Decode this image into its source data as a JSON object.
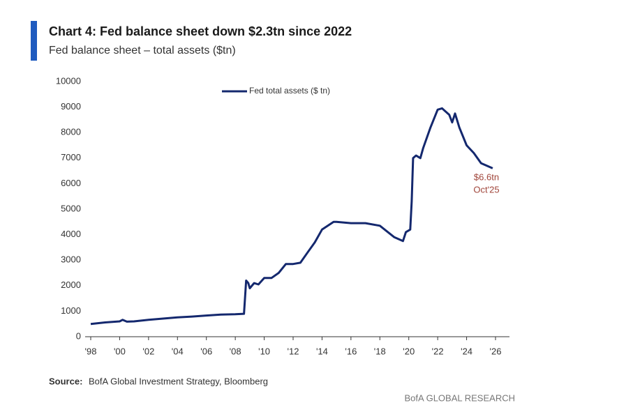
{
  "chart_data": {
    "type": "line",
    "title": "Chart 4: Fed balance sheet down $2.3tn since 2022",
    "subtitle": "Fed balance sheet – total assets ($tn)",
    "source_label": "Source:",
    "source": "BofA Global Investment Strategy, Bloomberg",
    "footer": "BofA GLOBAL RESEARCH",
    "annotation": [
      "$6.6tn",
      "Oct'25"
    ],
    "legend": "upper center",
    "grid": false,
    "xlim": [
      1998,
      2026
    ],
    "xticks": [
      {
        "value": 1998,
        "label": "'98"
      },
      {
        "value": 2000,
        "label": "'00"
      },
      {
        "value": 2002,
        "label": "'02"
      },
      {
        "value": 2004,
        "label": "'04"
      },
      {
        "value": 2006,
        "label": "'06"
      },
      {
        "value": 2008,
        "label": "'08"
      },
      {
        "value": 2010,
        "label": "'10"
      },
      {
        "value": 2012,
        "label": "'12"
      },
      {
        "value": 2014,
        "label": "'14"
      },
      {
        "value": 2016,
        "label": "'16"
      },
      {
        "value": 2018,
        "label": "'18"
      },
      {
        "value": 2020,
        "label": "'20"
      },
      {
        "value": 2022,
        "label": "'22"
      },
      {
        "value": 2024,
        "label": "'24"
      },
      {
        "value": 2026,
        "label": "'26"
      }
    ],
    "ylim": [
      0,
      10000
    ],
    "yticks": [
      0,
      1000,
      2000,
      3000,
      4000,
      5000,
      6000,
      7000,
      8000,
      9000,
      10000
    ],
    "x": [
      1998,
      1999,
      2000,
      2000.2,
      2000.5,
      2001,
      2002,
      2003,
      2004,
      2005,
      2006,
      2007,
      2008,
      2008.6,
      2008.75,
      2008.9,
      2009,
      2009.3,
      2009.6,
      2010,
      2010.5,
      2011,
      2011.5,
      2012,
      2012.5,
      2013,
      2013.5,
      2014,
      2014.8,
      2015,
      2016,
      2017,
      2018,
      2019,
      2019.6,
      2019.8,
      2020.1,
      2020.2,
      2020.3,
      2020.5,
      2020.8,
      2021,
      2021.5,
      2022,
      2022.3,
      2022.8,
      2023,
      2023.2,
      2023.5,
      2024,
      2024.5,
      2025,
      2025.8
    ],
    "series": [
      {
        "name": "Fed total assets ($ tn)",
        "color": "#14286e",
        "values": [
          500,
          560,
          600,
          660,
          590,
          600,
          660,
          710,
          760,
          790,
          830,
          870,
          880,
          900,
          2200,
          2100,
          1900,
          2100,
          2050,
          2300,
          2300,
          2500,
          2850,
          2850,
          2900,
          3300,
          3700,
          4200,
          4500,
          4500,
          4450,
          4450,
          4350,
          3900,
          3750,
          4100,
          4200,
          5300,
          7000,
          7100,
          7000,
          7400,
          8200,
          8900,
          8950,
          8700,
          8400,
          8750,
          8200,
          7500,
          7200,
          6800,
          6600
        ]
      }
    ]
  }
}
